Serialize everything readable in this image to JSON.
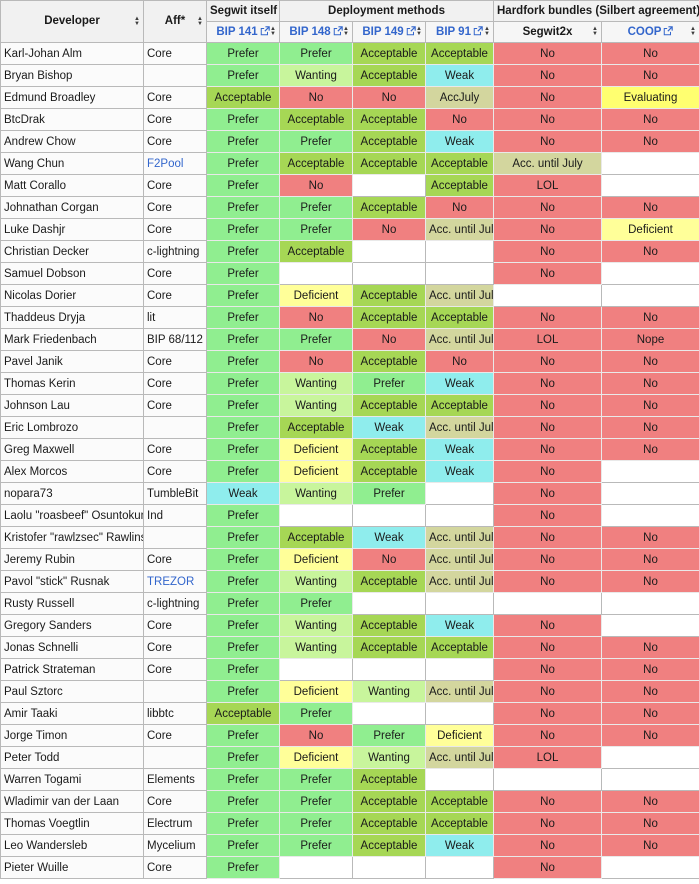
{
  "header": {
    "developer": "Developer",
    "aff": "Aff*",
    "groups": {
      "segwit_itself": "Segwit itself",
      "deployment_methods": "Deployment methods",
      "hardfork_bundles": "Hardfork bundles (Silbert agreement)"
    },
    "columns": {
      "bip141": "BIP 141",
      "bip148": "BIP 148",
      "bip149": "BIP 149",
      "bip91": "BIP 91",
      "segwit2x": "Segwit2x",
      "coop": "COOP"
    }
  },
  "link_color": "#3366cc",
  "colors": {
    "Prefer": "#90ee90",
    "Wanting": "#c8f59c",
    "Acceptable": "#a6d755",
    "Weak": "#8feded",
    "No": "#f08080",
    "LOL": "#f08080",
    "Nope": "#f08080",
    "Deficient": "#ffff99",
    "Evaluating": "#ffff70",
    "Acc. until July": "#d3d69e",
    "AccJuly": "#d3d69e"
  },
  "rows": [
    {
      "developer": "Karl-Johan Alm",
      "aff": "Core",
      "aff_is_link": false,
      "cells": [
        "Prefer",
        "Prefer",
        "Acceptable",
        "Acceptable",
        "No",
        "No"
      ]
    },
    {
      "developer": "Bryan Bishop",
      "aff": "",
      "aff_is_link": false,
      "cells": [
        "Prefer",
        "Wanting",
        "Acceptable",
        "Weak",
        "No",
        "No"
      ]
    },
    {
      "developer": "Edmund Broadley",
      "aff": "Core",
      "aff_is_link": false,
      "cells": [
        "Acceptable",
        "No",
        "No",
        "AccJuly",
        "No",
        "Evaluating"
      ]
    },
    {
      "developer": "BtcDrak",
      "aff": "Core",
      "aff_is_link": false,
      "cells": [
        "Prefer",
        "Acceptable",
        "Acceptable",
        "No",
        "No",
        "No"
      ]
    },
    {
      "developer": "Andrew Chow",
      "aff": "Core",
      "aff_is_link": false,
      "cells": [
        "Prefer",
        "Prefer",
        "Acceptable",
        "Weak",
        "No",
        "No"
      ]
    },
    {
      "developer": "Wang Chun",
      "aff": "F2Pool",
      "aff_is_link": true,
      "cells": [
        "Prefer",
        "Acceptable",
        "Acceptable",
        "Acceptable",
        "Acc. until July",
        ""
      ]
    },
    {
      "developer": "Matt Corallo",
      "aff": "Core",
      "aff_is_link": false,
      "cells": [
        "Prefer",
        "No",
        "",
        "Acceptable",
        "LOL",
        ""
      ]
    },
    {
      "developer": "Johnathan Corgan",
      "aff": "Core",
      "aff_is_link": false,
      "cells": [
        "Prefer",
        "Prefer",
        "Acceptable",
        "No",
        "No",
        "No"
      ]
    },
    {
      "developer": "Luke Dashjr",
      "aff": "Core",
      "aff_is_link": false,
      "cells": [
        "Prefer",
        "Prefer",
        "No",
        "Acc. until July",
        "No",
        "Deficient"
      ]
    },
    {
      "developer": "Christian Decker",
      "aff": "c-lightning",
      "aff_is_link": false,
      "cells": [
        "Prefer",
        "Acceptable",
        "",
        "",
        "No",
        "No"
      ]
    },
    {
      "developer": "Samuel Dobson",
      "aff": "Core",
      "aff_is_link": false,
      "cells": [
        "Prefer",
        "",
        "",
        "",
        "No",
        ""
      ]
    },
    {
      "developer": "Nicolas Dorier",
      "aff": "Core",
      "aff_is_link": false,
      "cells": [
        "Prefer",
        "Deficient",
        "Acceptable",
        "Acc. until July",
        "",
        ""
      ]
    },
    {
      "developer": "Thaddeus Dryja",
      "aff": "lit",
      "aff_is_link": false,
      "cells": [
        "Prefer",
        "No",
        "Acceptable",
        "Acceptable",
        "No",
        "No"
      ]
    },
    {
      "developer": "Mark Friedenbach",
      "aff": "BIP 68/112",
      "aff_is_link": false,
      "cells": [
        "Prefer",
        "Prefer",
        "No",
        "Acc. until July",
        "LOL",
        "Nope"
      ]
    },
    {
      "developer": "Pavel Janik",
      "aff": "Core",
      "aff_is_link": false,
      "cells": [
        "Prefer",
        "No",
        "Acceptable",
        "No",
        "No",
        "No"
      ]
    },
    {
      "developer": "Thomas Kerin",
      "aff": "Core",
      "aff_is_link": false,
      "cells": [
        "Prefer",
        "Wanting",
        "Prefer",
        "Weak",
        "No",
        "No"
      ]
    },
    {
      "developer": "Johnson Lau",
      "aff": "Core",
      "aff_is_link": false,
      "cells": [
        "Prefer",
        "Wanting",
        "Acceptable",
        "Acceptable",
        "No",
        "No"
      ]
    },
    {
      "developer": "Eric Lombrozo",
      "aff": "",
      "aff_is_link": false,
      "cells": [
        "Prefer",
        "Acceptable",
        "Weak",
        "Acc. until July",
        "No",
        "No"
      ]
    },
    {
      "developer": "Greg Maxwell",
      "aff": "Core",
      "aff_is_link": false,
      "cells": [
        "Prefer",
        "Deficient",
        "Acceptable",
        "Weak",
        "No",
        "No"
      ]
    },
    {
      "developer": "Alex Morcos",
      "aff": "Core",
      "aff_is_link": false,
      "cells": [
        "Prefer",
        "Deficient",
        "Acceptable",
        "Weak",
        "No",
        ""
      ]
    },
    {
      "developer": "nopara73",
      "aff": "TumbleBit",
      "aff_is_link": false,
      "cells": [
        "Weak",
        "Wanting",
        "Prefer",
        "",
        "No",
        ""
      ]
    },
    {
      "developer": "Laolu \"roasbeef\" Osuntokun",
      "aff": "Ind",
      "aff_is_link": false,
      "cells": [
        "Prefer",
        "",
        "",
        "",
        "No",
        ""
      ]
    },
    {
      "developer": "Kristofer \"rawlzsec\" Rawlins",
      "aff": "",
      "aff_is_link": false,
      "cells": [
        "Prefer",
        "Acceptable",
        "Weak",
        "Acc. until July",
        "No",
        "No"
      ]
    },
    {
      "developer": "Jeremy Rubin",
      "aff": "Core",
      "aff_is_link": false,
      "cells": [
        "Prefer",
        "Deficient",
        "No",
        "Acc. until July",
        "No",
        "No"
      ]
    },
    {
      "developer": "Pavol \"stick\" Rusnak",
      "aff": "TREZOR",
      "aff_is_link": true,
      "cells": [
        "Prefer",
        "Wanting",
        "Acceptable",
        "Acc. until July",
        "No",
        "No"
      ]
    },
    {
      "developer": "Rusty Russell",
      "aff": "c-lightning",
      "aff_is_link": false,
      "cells": [
        "Prefer",
        "Prefer",
        "",
        "",
        "",
        ""
      ]
    },
    {
      "developer": "Gregory Sanders",
      "aff": "Core",
      "aff_is_link": false,
      "cells": [
        "Prefer",
        "Wanting",
        "Acceptable",
        "Weak",
        "No",
        ""
      ]
    },
    {
      "developer": "Jonas Schnelli",
      "aff": "Core",
      "aff_is_link": false,
      "cells": [
        "Prefer",
        "Wanting",
        "Acceptable",
        "Acceptable",
        "No",
        "No"
      ]
    },
    {
      "developer": "Patrick Strateman",
      "aff": "Core",
      "aff_is_link": false,
      "cells": [
        "Prefer",
        "",
        "",
        "",
        "No",
        "No"
      ]
    },
    {
      "developer": "Paul Sztorc",
      "aff": "",
      "aff_is_link": false,
      "cells": [
        "Prefer",
        "Deficient",
        "Wanting",
        "Acc. until July",
        "No",
        "No"
      ]
    },
    {
      "developer": "Amir Taaki",
      "aff": "libbtc",
      "aff_is_link": false,
      "cells": [
        "Acceptable",
        "Prefer",
        "",
        "",
        "No",
        "No"
      ]
    },
    {
      "developer": "Jorge Timon",
      "aff": "Core",
      "aff_is_link": false,
      "cells": [
        "Prefer",
        "No",
        "Prefer",
        "Deficient",
        "No",
        "No"
      ]
    },
    {
      "developer": "Peter Todd",
      "aff": "",
      "aff_is_link": false,
      "cells": [
        "Prefer",
        "Deficient",
        "Wanting",
        "Acc. until July",
        "LOL",
        ""
      ]
    },
    {
      "developer": "Warren Togami",
      "aff": "Elements",
      "aff_is_link": false,
      "cells": [
        "Prefer",
        "Prefer",
        "Acceptable",
        "",
        "",
        ""
      ]
    },
    {
      "developer": "Wladimir van der Laan",
      "aff": "Core",
      "aff_is_link": false,
      "cells": [
        "Prefer",
        "Prefer",
        "Acceptable",
        "Acceptable",
        "No",
        "No"
      ]
    },
    {
      "developer": "Thomas Voegtlin",
      "aff": "Electrum",
      "aff_is_link": false,
      "cells": [
        "Prefer",
        "Prefer",
        "Acceptable",
        "Acceptable",
        "No",
        "No"
      ]
    },
    {
      "developer": "Leo Wandersleb",
      "aff": "Mycelium",
      "aff_is_link": false,
      "cells": [
        "Prefer",
        "Prefer",
        "Acceptable",
        "Weak",
        "No",
        "No"
      ]
    },
    {
      "developer": "Pieter Wuille",
      "aff": "Core",
      "aff_is_link": false,
      "cells": [
        "Prefer",
        "",
        "",
        "",
        "No",
        ""
      ]
    }
  ]
}
